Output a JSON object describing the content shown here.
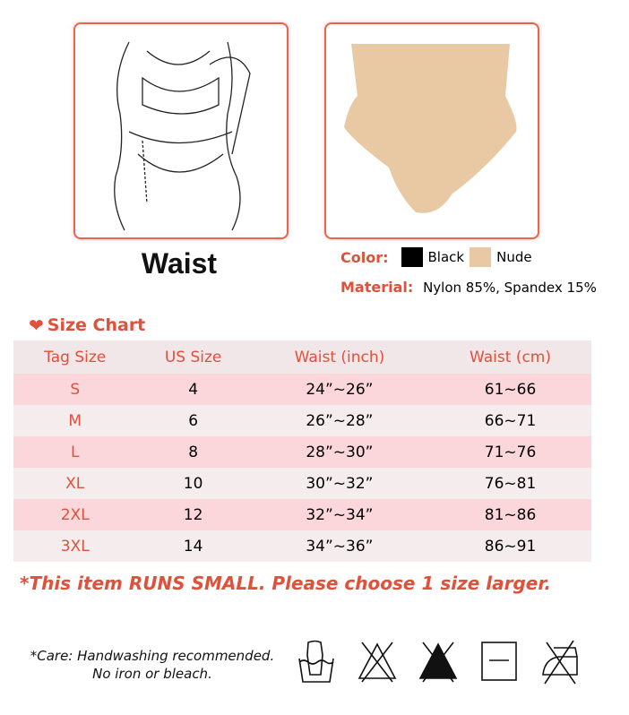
{
  "images": {
    "model_label": "Waist"
  },
  "product": {
    "color_label": "Color:",
    "colors": [
      {
        "name": "Black",
        "hex": "#000000"
      },
      {
        "name": "Nude",
        "hex": "#e8c9a4"
      }
    ],
    "material_label": "Material:",
    "material_value": "Nylon 85%, Spandex 15%"
  },
  "size_chart": {
    "title": "Size Chart",
    "icon": "heart-icon",
    "headers": [
      "Tag Size",
      "US Size",
      "Waist (inch)",
      "Waist (cm)"
    ],
    "rows": [
      [
        "S",
        "4",
        "24”~26”",
        "61~66"
      ],
      [
        "M",
        "6",
        "26”~28”",
        "66~71"
      ],
      [
        "L",
        "8",
        "28”~30”",
        "71~76"
      ],
      [
        "XL",
        "10",
        "30”~32”",
        "76~81"
      ],
      [
        "2XL",
        "12",
        "32”~34”",
        "81~86"
      ],
      [
        "3XL",
        "14",
        "34”~36”",
        "86~91"
      ]
    ]
  },
  "note": "*This item RUNS SMALL. Please choose 1 size larger.",
  "care": {
    "line1": "*Care: Handwashing recommended.",
    "line2": "No iron or bleach.",
    "icons": [
      "hand-wash-icon",
      "no-bleach-icon",
      "no-chlorine-bleach-icon",
      "dry-flat-icon",
      "no-iron-icon"
    ]
  },
  "colors": {
    "accent": "#e0503a",
    "row_pink": "#fbd6db",
    "row_light": "#f4eced"
  }
}
